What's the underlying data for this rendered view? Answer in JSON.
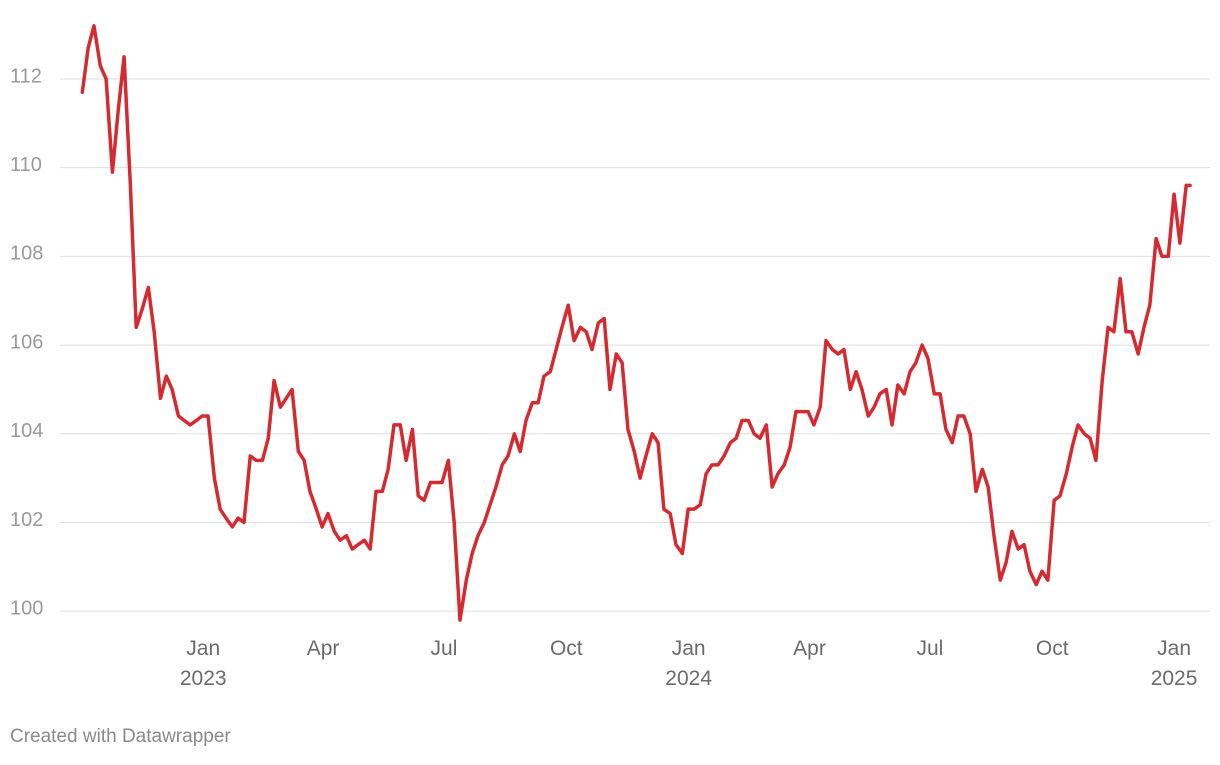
{
  "chart_data": {
    "type": "line",
    "note": "Created with Datawrapper",
    "color": "#d52a2f",
    "grid": true,
    "xlim": [
      2022.705,
      2025.074
    ],
    "ylim": [
      99.35,
      113.33
    ],
    "yticks": [
      100,
      102,
      104,
      106,
      108,
      110,
      112
    ],
    "xticks": [
      {
        "value": 2023,
        "label": "Jan\n2023"
      },
      {
        "value": 2023.247,
        "label": "Apr"
      },
      {
        "value": 2023.496,
        "label": "Jul"
      },
      {
        "value": 2023.748,
        "label": "Oct"
      },
      {
        "value": 2024,
        "label": "Jan\n2024"
      },
      {
        "value": 2024.249,
        "label": "Apr"
      },
      {
        "value": 2024.497,
        "label": "Jul"
      },
      {
        "value": 2024.749,
        "label": "Oct"
      },
      {
        "value": 2025,
        "label": "Jan\n2025"
      }
    ],
    "x": [
      2022.751,
      2022.763,
      2022.775,
      2022.788,
      2022.8,
      2022.813,
      2022.825,
      2022.837,
      2022.85,
      2022.862,
      2022.874,
      2022.887,
      2022.899,
      2022.912,
      2022.924,
      2022.936,
      2022.949,
      2022.961,
      2022.973,
      2022.986,
      2022.998,
      2023.01,
      2023.023,
      2023.035,
      2023.047,
      2023.06,
      2023.072,
      2023.084,
      2023.097,
      2023.109,
      2023.122,
      2023.134,
      2023.146,
      2023.159,
      2023.171,
      2023.183,
      2023.196,
      2023.208,
      2023.22,
      2023.233,
      2023.245,
      2023.257,
      2023.27,
      2023.282,
      2023.295,
      2023.307,
      2023.319,
      2023.332,
      2023.344,
      2023.356,
      2023.369,
      2023.381,
      2023.393,
      2023.406,
      2023.418,
      2023.431,
      2023.443,
      2023.455,
      2023.468,
      2023.48,
      2023.492,
      2023.505,
      2023.517,
      2023.529,
      2023.542,
      2023.554,
      2023.566,
      2023.579,
      2023.591,
      2023.603,
      2023.616,
      2023.628,
      2023.641,
      2023.653,
      2023.665,
      2023.678,
      2023.69,
      2023.702,
      2023.715,
      2023.727,
      2023.739,
      2023.752,
      2023.764,
      2023.777,
      2023.789,
      2023.801,
      2023.814,
      2023.826,
      2023.838,
      2023.851,
      2023.863,
      2023.875,
      2023.888,
      2023.9,
      2023.912,
      2023.925,
      2023.937,
      2023.949,
      2023.962,
      2023.974,
      2023.987,
      2023.999,
      2024.011,
      2024.024,
      2024.036,
      2024.048,
      2024.061,
      2024.073,
      2024.086,
      2024.098,
      2024.11,
      2024.123,
      2024.135,
      2024.147,
      2024.16,
      2024.172,
      2024.184,
      2024.197,
      2024.209,
      2024.221,
      2024.234,
      2024.246,
      2024.258,
      2024.271,
      2024.283,
      2024.296,
      2024.308,
      2024.32,
      2024.333,
      2024.345,
      2024.357,
      2024.37,
      2024.382,
      2024.394,
      2024.407,
      2024.419,
      2024.431,
      2024.444,
      2024.456,
      2024.468,
      2024.481,
      2024.493,
      2024.506,
      2024.518,
      2024.53,
      2024.543,
      2024.555,
      2024.567,
      2024.58,
      2024.592,
      2024.605,
      2024.617,
      2024.629,
      2024.642,
      2024.654,
      2024.666,
      2024.679,
      2024.691,
      2024.703,
      2024.716,
      2024.728,
      2024.74,
      2024.753,
      2024.765,
      2024.778,
      2024.79,
      2024.802,
      2024.815,
      2024.827,
      2024.839,
      2024.852,
      2024.864,
      2024.876,
      2024.889,
      2024.901,
      2024.913,
      2024.926,
      2024.938,
      2024.95,
      2024.963,
      2024.975,
      2024.988,
      2025.0,
      2025.012,
      2025.025,
      2025.033
    ],
    "values": [
      111.7,
      112.7,
      113.2,
      112.3,
      112.0,
      109.9,
      111.3,
      112.5,
      109.6,
      106.4,
      106.8,
      107.3,
      106.3,
      104.8,
      105.3,
      105.0,
      104.4,
      104.3,
      104.2,
      104.3,
      104.4,
      104.4,
      103.0,
      102.3,
      102.1,
      101.9,
      102.1,
      102.0,
      103.5,
      103.4,
      103.4,
      103.9,
      105.2,
      104.6,
      104.8,
      105.0,
      103.6,
      103.4,
      102.7,
      102.3,
      101.9,
      102.2,
      101.8,
      101.6,
      101.7,
      101.4,
      101.5,
      101.6,
      101.4,
      102.7,
      102.7,
      103.2,
      104.2,
      104.2,
      103.4,
      104.1,
      102.6,
      102.5,
      102.9,
      102.9,
      102.9,
      103.4,
      102.0,
      99.8,
      100.7,
      101.3,
      101.7,
      102.0,
      102.4,
      102.8,
      103.3,
      103.5,
      104.0,
      103.6,
      104.3,
      104.7,
      104.7,
      105.3,
      105.4,
      105.9,
      106.4,
      106.9,
      106.1,
      106.4,
      106.3,
      105.9,
      106.5,
      106.6,
      105.0,
      105.8,
      105.6,
      104.1,
      103.6,
      103.0,
      103.5,
      104.0,
      103.8,
      102.3,
      102.2,
      101.5,
      101.3,
      102.3,
      102.3,
      102.4,
      103.1,
      103.3,
      103.3,
      103.5,
      103.8,
      103.9,
      104.3,
      104.3,
      104.0,
      103.9,
      104.2,
      102.8,
      103.1,
      103.3,
      103.7,
      104.5,
      104.5,
      104.5,
      104.2,
      104.6,
      106.1,
      105.9,
      105.8,
      105.9,
      105.0,
      105.4,
      105.0,
      104.4,
      104.6,
      104.9,
      105.0,
      104.2,
      105.1,
      104.9,
      105.4,
      105.6,
      106.0,
      105.7,
      104.9,
      104.9,
      104.1,
      103.8,
      104.4,
      104.4,
      104.0,
      102.7,
      103.2,
      102.8,
      101.7,
      100.7,
      101.1,
      101.8,
      101.4,
      101.5,
      100.9,
      100.6,
      100.9,
      100.7,
      102.5,
      102.6,
      103.1,
      103.7,
      104.2,
      104.0,
      103.9,
      103.4,
      105.2,
      106.4,
      106.3,
      107.5,
      106.3,
      106.3,
      105.8,
      106.4,
      106.9,
      108.4,
      108.0,
      108.0,
      109.4,
      108.3,
      109.6,
      109.6
    ]
  }
}
